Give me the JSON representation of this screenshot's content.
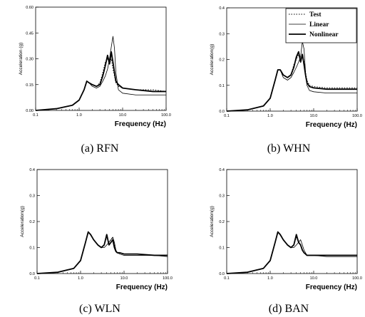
{
  "chart_data": [
    {
      "type": "line",
      "caption": "(a)  RFN",
      "xlabel": "Frequency (Hz)",
      "ylabel": "Acceleration (g)",
      "xscale": "log",
      "xlim": [
        0.1,
        100
      ],
      "ylim": [
        0,
        0.6
      ],
      "xticks": [
        "0.1",
        "1.0",
        "10.0",
        "100.0"
      ],
      "yticks": [
        "0.00",
        "0.15",
        "0.30",
        "0.45",
        "0.60"
      ],
      "legend": null,
      "series": [
        {
          "style": "dotted",
          "x": [
            0.1,
            0.3,
            0.7,
            1.0,
            1.3,
            1.5,
            1.7,
            2.0,
            2.5,
            3.0,
            3.5,
            4.0,
            4.5,
            5.0,
            5.5,
            6.0,
            6.5,
            7.0,
            8.0,
            10,
            20,
            50,
            100
          ],
          "y": [
            0.0,
            0.01,
            0.03,
            0.06,
            0.12,
            0.17,
            0.16,
            0.15,
            0.14,
            0.16,
            0.22,
            0.28,
            0.3,
            0.27,
            0.3,
            0.24,
            0.2,
            0.16,
            0.14,
            0.13,
            0.12,
            0.12,
            0.11
          ]
        },
        {
          "style": "thin",
          "x": [
            0.1,
            0.3,
            0.7,
            1.0,
            1.3,
            1.5,
            1.7,
            2.0,
            2.5,
            3.0,
            3.5,
            4.0,
            4.5,
            5.0,
            5.5,
            6.0,
            6.5,
            7.0,
            8.0,
            10,
            20,
            50,
            100
          ],
          "y": [
            0.0,
            0.01,
            0.03,
            0.06,
            0.12,
            0.17,
            0.16,
            0.14,
            0.13,
            0.14,
            0.17,
            0.2,
            0.24,
            0.3,
            0.37,
            0.43,
            0.36,
            0.22,
            0.12,
            0.1,
            0.09,
            0.09,
            0.09
          ]
        },
        {
          "style": "thick",
          "x": [
            0.1,
            0.3,
            0.7,
            1.0,
            1.3,
            1.5,
            1.7,
            2.0,
            2.5,
            3.0,
            3.5,
            4.0,
            4.5,
            5.0,
            5.5,
            6.0,
            6.5,
            7.0,
            8.0,
            10,
            20,
            50,
            100
          ],
          "y": [
            0.0,
            0.01,
            0.03,
            0.06,
            0.12,
            0.17,
            0.16,
            0.15,
            0.14,
            0.15,
            0.2,
            0.26,
            0.32,
            0.27,
            0.34,
            0.28,
            0.22,
            0.17,
            0.15,
            0.13,
            0.12,
            0.11,
            0.11
          ]
        }
      ]
    },
    {
      "type": "line",
      "caption": "(b)  WHN",
      "xlabel": "Frequency (Hz)",
      "ylabel": "Acceleration(g)",
      "xscale": "log",
      "xlim": [
        0.1,
        100
      ],
      "ylim": [
        0,
        0.4
      ],
      "xticks": [
        "0.1",
        "1.0",
        "10.0",
        "100.0"
      ],
      "yticks": [
        "0.0",
        "0.1",
        "0.2",
        "0.3",
        "0.4"
      ],
      "legend": [
        "Test",
        "Linear",
        "Nonlinear"
      ],
      "legend_position": "top-right",
      "series": [
        {
          "name": "Test",
          "style": "dotted",
          "x": [
            0.1,
            0.3,
            0.7,
            1.0,
            1.3,
            1.5,
            1.7,
            2.0,
            2.5,
            3.0,
            3.5,
            4.0,
            4.5,
            5.0,
            5.5,
            6.0,
            6.5,
            7.0,
            8.0,
            10,
            20,
            50,
            100
          ],
          "y": [
            0.0,
            0.005,
            0.02,
            0.05,
            0.12,
            0.16,
            0.16,
            0.14,
            0.13,
            0.14,
            0.18,
            0.2,
            0.22,
            0.2,
            0.22,
            0.19,
            0.15,
            0.12,
            0.1,
            0.095,
            0.09,
            0.09,
            0.09
          ]
        },
        {
          "name": "Linear",
          "style": "thin",
          "x": [
            0.1,
            0.3,
            0.7,
            1.0,
            1.3,
            1.5,
            1.7,
            2.0,
            2.5,
            3.0,
            3.5,
            4.0,
            4.5,
            5.0,
            5.5,
            6.0,
            6.5,
            7.0,
            8.0,
            10,
            20,
            50,
            100
          ],
          "y": [
            0.0,
            0.005,
            0.02,
            0.05,
            0.12,
            0.16,
            0.16,
            0.13,
            0.12,
            0.13,
            0.15,
            0.17,
            0.19,
            0.21,
            0.27,
            0.24,
            0.15,
            0.1,
            0.08,
            0.075,
            0.07,
            0.07,
            0.07
          ]
        },
        {
          "name": "Nonlinear",
          "style": "thick",
          "x": [
            0.1,
            0.3,
            0.7,
            1.0,
            1.3,
            1.5,
            1.7,
            2.0,
            2.5,
            3.0,
            3.5,
            4.0,
            4.5,
            5.0,
            5.5,
            6.0,
            6.5,
            7.0,
            8.0,
            10,
            20,
            50,
            100
          ],
          "y": [
            0.0,
            0.005,
            0.02,
            0.05,
            0.12,
            0.16,
            0.16,
            0.14,
            0.13,
            0.14,
            0.17,
            0.21,
            0.23,
            0.19,
            0.22,
            0.18,
            0.14,
            0.11,
            0.095,
            0.09,
            0.085,
            0.085,
            0.085
          ]
        }
      ]
    },
    {
      "type": "line",
      "caption": "(c)  WLN",
      "xlabel": "Frequency (Hz)",
      "ylabel": "Acceleration(g)",
      "xscale": "log",
      "xlim": [
        0.1,
        100
      ],
      "ylim": [
        0,
        0.4
      ],
      "xticks": [
        "0.1",
        "1.0",
        "10.0",
        "100.0"
      ],
      "yticks": [
        "0.0",
        "0.1",
        "0.2",
        "0.3",
        "0.4"
      ],
      "legend": null,
      "series": [
        {
          "style": "dotted",
          "x": [
            0.1,
            0.3,
            0.7,
            1.0,
            1.3,
            1.5,
            1.7,
            2.0,
            2.5,
            3.0,
            3.5,
            4.0,
            4.5,
            5.0,
            5.5,
            6.0,
            6.5,
            7.0,
            8.0,
            10,
            20,
            50,
            100
          ],
          "y": [
            0.0,
            0.005,
            0.02,
            0.05,
            0.12,
            0.16,
            0.15,
            0.13,
            0.11,
            0.1,
            0.11,
            0.14,
            0.12,
            0.13,
            0.14,
            0.11,
            0.09,
            0.08,
            0.08,
            0.075,
            0.075,
            0.07,
            0.07
          ]
        },
        {
          "style": "thin",
          "x": [
            0.1,
            0.3,
            0.7,
            1.0,
            1.3,
            1.5,
            1.7,
            2.0,
            2.5,
            3.0,
            3.5,
            4.0,
            4.5,
            5.0,
            5.5,
            6.0,
            6.5,
            7.0,
            8.0,
            10,
            20,
            50,
            100
          ],
          "y": [
            0.0,
            0.005,
            0.02,
            0.05,
            0.12,
            0.16,
            0.15,
            0.13,
            0.11,
            0.1,
            0.1,
            0.11,
            0.12,
            0.13,
            0.14,
            0.12,
            0.09,
            0.08,
            0.075,
            0.07,
            0.07,
            0.07,
            0.065
          ]
        },
        {
          "style": "thick",
          "x": [
            0.1,
            0.3,
            0.7,
            1.0,
            1.3,
            1.5,
            1.7,
            2.0,
            2.5,
            3.0,
            3.5,
            4.0,
            4.5,
            5.0,
            5.5,
            6.0,
            6.5,
            7.0,
            8.0,
            10,
            20,
            50,
            100
          ],
          "y": [
            0.0,
            0.005,
            0.02,
            0.05,
            0.12,
            0.16,
            0.15,
            0.13,
            0.11,
            0.1,
            0.11,
            0.15,
            0.11,
            0.12,
            0.13,
            0.1,
            0.085,
            0.08,
            0.08,
            0.075,
            0.075,
            0.07,
            0.07
          ]
        }
      ]
    },
    {
      "type": "line",
      "caption": "(d)  BAN",
      "xlabel": "Frequency (Hz)",
      "ylabel": "Acceleration(g)",
      "xscale": "log",
      "xlim": [
        0.1,
        100
      ],
      "ylim": [
        0,
        0.4
      ],
      "xticks": [
        "0.1",
        "1.0",
        "10.0",
        "100.0"
      ],
      "yticks": [
        "0.0",
        "0.1",
        "0.2",
        "0.3",
        "0.4"
      ],
      "legend": null,
      "series": [
        {
          "style": "dotted",
          "x": [
            0.1,
            0.3,
            0.7,
            1.0,
            1.3,
            1.5,
            1.7,
            2.0,
            2.5,
            3.0,
            3.5,
            4.0,
            4.5,
            5.0,
            5.5,
            6.0,
            6.5,
            7.0,
            8.0,
            10,
            20,
            50,
            100
          ],
          "y": [
            0.0,
            0.005,
            0.02,
            0.05,
            0.12,
            0.16,
            0.15,
            0.13,
            0.11,
            0.1,
            0.11,
            0.14,
            0.12,
            0.11,
            0.09,
            0.08,
            0.075,
            0.07,
            0.07,
            0.07,
            0.07,
            0.07,
            0.07
          ]
        },
        {
          "style": "thin",
          "x": [
            0.1,
            0.3,
            0.7,
            1.0,
            1.3,
            1.5,
            1.7,
            2.0,
            2.5,
            3.0,
            3.5,
            4.0,
            4.5,
            5.0,
            5.5,
            6.0,
            6.5,
            7.0,
            8.0,
            10,
            20,
            50,
            100
          ],
          "y": [
            0.0,
            0.005,
            0.02,
            0.05,
            0.12,
            0.16,
            0.15,
            0.13,
            0.11,
            0.1,
            0.1,
            0.11,
            0.12,
            0.13,
            0.11,
            0.09,
            0.08,
            0.07,
            0.07,
            0.07,
            0.065,
            0.065,
            0.065
          ]
        },
        {
          "style": "thick",
          "x": [
            0.1,
            0.3,
            0.7,
            1.0,
            1.3,
            1.5,
            1.7,
            2.0,
            2.5,
            3.0,
            3.5,
            4.0,
            4.5,
            5.0,
            5.5,
            6.0,
            6.5,
            7.0,
            8.0,
            10,
            20,
            50,
            100
          ],
          "y": [
            0.0,
            0.005,
            0.02,
            0.05,
            0.12,
            0.16,
            0.15,
            0.13,
            0.11,
            0.1,
            0.11,
            0.15,
            0.12,
            0.11,
            0.09,
            0.08,
            0.075,
            0.07,
            0.07,
            0.07,
            0.07,
            0.07,
            0.07
          ]
        }
      ]
    }
  ]
}
